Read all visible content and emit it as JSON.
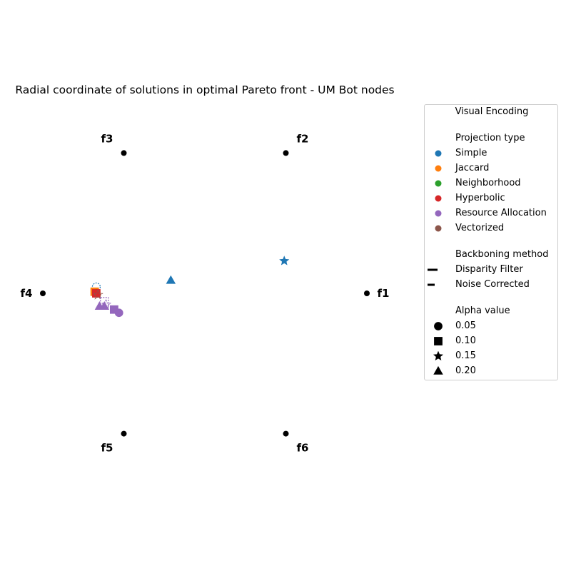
{
  "chart_data": {
    "type": "scatter",
    "title": "Radial coordinate of solutions in optimal Pareto front - UM Bot nodes",
    "anchors": [
      "f1",
      "f2",
      "f3",
      "f4",
      "f5",
      "f6"
    ],
    "points": [
      {
        "x": 0.49,
        "y": 0.2,
        "series": "Simple",
        "backbone": "Disparity Filter",
        "alpha": "0.15"
      },
      {
        "x": -0.21,
        "y": 0.08,
        "series": "Simple",
        "backbone": "Disparity Filter",
        "alpha": "0.20"
      },
      {
        "x": -0.67,
        "y": 0.04,
        "series": "Simple",
        "backbone": "Noise Corrected",
        "alpha": "0.05"
      },
      {
        "x": -0.68,
        "y": 0.01,
        "series": "Jaccard",
        "backbone": "Disparity Filter",
        "alpha": "0.10"
      },
      {
        "x": -0.67,
        "y": 0.0,
        "series": "Neighborhood",
        "backbone": "Noise Corrected",
        "alpha": "0.05"
      },
      {
        "x": -0.67,
        "y": 0.0,
        "series": "Hyperbolic",
        "backbone": "Disparity Filter",
        "alpha": "0.10"
      },
      {
        "x": -0.66,
        "y": -0.01,
        "series": "Vectorized",
        "backbone": "Noise Corrected",
        "alpha": "0.15"
      },
      {
        "x": -0.62,
        "y": -0.05,
        "series": "Resource Allocation",
        "backbone": "Noise Corrected",
        "alpha": "0.10"
      },
      {
        "x": -0.61,
        "y": -0.07,
        "series": "Resource Allocation",
        "backbone": "Noise Corrected",
        "alpha": "0.15"
      },
      {
        "x": -0.65,
        "y": -0.08,
        "series": "Resource Allocation",
        "backbone": "Disparity Filter",
        "alpha": "0.20"
      },
      {
        "x": -0.62,
        "y": -0.08,
        "series": "Resource Allocation",
        "backbone": "Disparity Filter",
        "alpha": "0.20"
      },
      {
        "x": -0.56,
        "y": -0.1,
        "series": "Resource Allocation",
        "backbone": "Disparity Filter",
        "alpha": "0.10"
      },
      {
        "x": -0.53,
        "y": -0.12,
        "series": "Resource Allocation",
        "backbone": "Disparity Filter",
        "alpha": "0.05"
      }
    ],
    "legend": {
      "title": "Visual Encoding",
      "projection_title": "Projection type",
      "projection": [
        {
          "label": "Simple",
          "color": "#1f77b4"
        },
        {
          "label": "Jaccard",
          "color": "#ff7f0e"
        },
        {
          "label": "Neighborhood",
          "color": "#2ca02c"
        },
        {
          "label": "Hyperbolic",
          "color": "#d62728"
        },
        {
          "label": "Resource Allocation",
          "color": "#9467bd"
        },
        {
          "label": "Vectorized",
          "color": "#8c564b"
        }
      ],
      "backbone_title": "Backboning method",
      "backbone": [
        {
          "label": "Disparity Filter",
          "style": "solid"
        },
        {
          "label": "Noise Corrected",
          "style": "dashed"
        }
      ],
      "alpha_title": "Alpha value",
      "alpha": [
        {
          "label": "0.05",
          "marker": "circle"
        },
        {
          "label": "0.10",
          "marker": "square"
        },
        {
          "label": "0.15",
          "marker": "star"
        },
        {
          "label": "0.20",
          "marker": "triangle"
        }
      ],
      "placement": "right"
    }
  }
}
